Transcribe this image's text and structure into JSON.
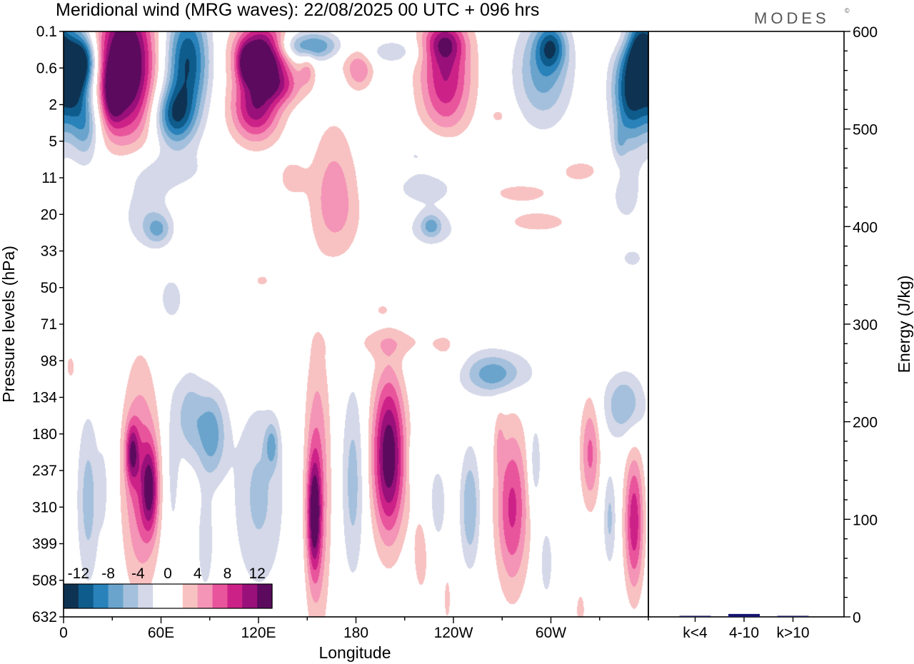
{
  "chart_data": {
    "type": "heatmap",
    "title": "Meridional wind (MRG waves):  22/08/2025  00 UTC  + 096 hrs",
    "logo": "MODES",
    "logo_mark": "©",
    "xlabel": "Longitude",
    "ylabel": "Pressure levels (hPa)",
    "x_ticks": [
      "0",
      "60E",
      "120E",
      "180",
      "120W",
      "60W"
    ],
    "x_tick_degrees": [
      0,
      60,
      120,
      180,
      240,
      300
    ],
    "x_range_degrees": [
      0,
      360
    ],
    "y_levels": [
      "0.1",
      "0.6",
      "2",
      "5",
      "11",
      "20",
      "33",
      "50",
      "71",
      "98",
      "134",
      "180",
      "237",
      "310",
      "399",
      "508",
      "632"
    ],
    "colorbar": {
      "labels": [
        "-12",
        "-8",
        "-4",
        "0",
        "4",
        "8",
        "12"
      ],
      "label_values": [
        -12,
        -8,
        -4,
        0,
        4,
        8,
        12
      ],
      "bounds": [
        -14,
        14
      ],
      "step": 2,
      "colors": [
        "#0e3252",
        "#0e5c8c",
        "#2a82ba",
        "#6aa4cc",
        "#a4c0dc",
        "#d4d8e8",
        "#ffffff",
        "#ffffff",
        "#f8c2c2",
        "#f494b6",
        "#e9559c",
        "#cc2288",
        "#99107a",
        "#5c0a5e"
      ]
    },
    "field_blobs": [
      {
        "lon": 5,
        "lev": 1.2,
        "rx": 10,
        "ry": 1.4,
        "v": -14
      },
      {
        "lon": 13,
        "lev": 0.8,
        "rx": 8,
        "ry": 0.7,
        "v": -9
      },
      {
        "lon": 14,
        "lev": 2.6,
        "rx": 8,
        "ry": 0.9,
        "v": -6
      },
      {
        "lon": 38,
        "lev": 0.9,
        "rx": 17,
        "ry": 1.9,
        "v": 17
      },
      {
        "lon": 30,
        "lev": 1.7,
        "rx": 6,
        "ry": 0.8,
        "v": 7
      },
      {
        "lon": 76,
        "lev": 0.8,
        "rx": 13,
        "ry": 1.5,
        "v": -12
      },
      {
        "lon": 68,
        "lev": 2.3,
        "rx": 12,
        "ry": 0.8,
        "v": -10
      },
      {
        "lon": 122,
        "lev": 0.6,
        "rx": 16,
        "ry": 0.8,
        "v": 17
      },
      {
        "lon": 112,
        "lev": 0.9,
        "rx": 5,
        "ry": 0.5,
        "v": 6
      },
      {
        "lon": 152,
        "lev": 0.4,
        "rx": 25,
        "ry": 0.4,
        "v": -9
      },
      {
        "lon": 150,
        "lev": 1.0,
        "rx": 5,
        "ry": 0.5,
        "v": 4
      },
      {
        "lon": 133,
        "lev": 1.5,
        "rx": 14,
        "ry": 0.5,
        "v": 6
      },
      {
        "lon": 118,
        "lev": 2.1,
        "rx": 15,
        "ry": 0.9,
        "v": 11
      },
      {
        "lon": 178,
        "lev": 0.5,
        "rx": 16,
        "ry": 0.5,
        "v": 5
      },
      {
        "lon": 182,
        "lev": 1.1,
        "rx": 8,
        "ry": 0.5,
        "v": 5
      },
      {
        "lon": 198,
        "lev": 0.55,
        "rx": 22,
        "ry": 0.35,
        "v": -4
      },
      {
        "lon": 235,
        "lev": 1.2,
        "rx": 16,
        "ry": 1.6,
        "v": 10
      },
      {
        "lon": 234,
        "lev": 0.3,
        "rx": 12,
        "ry": 0.5,
        "v": 6
      },
      {
        "lon": 295,
        "lev": 1.1,
        "rx": 17,
        "ry": 1.4,
        "v": -7
      },
      {
        "lon": 300,
        "lev": 0.4,
        "rx": 9,
        "ry": 0.6,
        "v": -8
      },
      {
        "lon": 349,
        "lev": 1.6,
        "rx": 11,
        "ry": 1.4,
        "v": -13
      },
      {
        "lon": 355,
        "lev": 0.4,
        "rx": 8,
        "ry": 0.8,
        "v": -10
      },
      {
        "lon": 350,
        "lev": 0.2,
        "rx": 20,
        "ry": 0.5,
        "v": 2
      },
      {
        "lon": 268,
        "lev": 2.3,
        "rx": 7,
        "ry": 0.3,
        "v": 2.5
      },
      {
        "lon": 166,
        "lev": 3.8,
        "rx": 14,
        "ry": 1.7,
        "v": 3.2
      },
      {
        "lon": 168,
        "lev": 5.0,
        "rx": 16,
        "ry": 1.3,
        "v": 3.2
      },
      {
        "lon": 140,
        "lev": 4.0,
        "rx": 10,
        "ry": 0.6,
        "v": 2.6
      },
      {
        "lon": 60,
        "lev": 3.8,
        "rx": 34,
        "ry": 0.6,
        "v": -2.6
      },
      {
        "lon": 50,
        "lev": 5.0,
        "rx": 16,
        "ry": 1.0,
        "v": -3.2
      },
      {
        "lon": 58,
        "lev": 5.4,
        "rx": 8,
        "ry": 0.4,
        "v": -5
      },
      {
        "lon": 224,
        "lev": 3.3,
        "rx": 25,
        "ry": 0.6,
        "v": -2.6
      },
      {
        "lon": 225,
        "lev": 4.3,
        "rx": 28,
        "ry": 0.5,
        "v": -2.6
      },
      {
        "lon": 227,
        "lev": 5.4,
        "rx": 22,
        "ry": 0.6,
        "v": -2.6
      },
      {
        "lon": 226,
        "lev": 5.3,
        "rx": 6,
        "ry": 0.3,
        "v": -5
      },
      {
        "lon": 280,
        "lev": 4.4,
        "rx": 28,
        "ry": 0.35,
        "v": 2.6
      },
      {
        "lon": 292,
        "lev": 5.2,
        "rx": 28,
        "ry": 0.4,
        "v": 2.6
      },
      {
        "lon": 318,
        "lev": 3.8,
        "rx": 18,
        "ry": 0.4,
        "v": 2.6
      },
      {
        "lon": 346,
        "lev": 4.5,
        "rx": 12,
        "ry": 1.0,
        "v": -2.6
      },
      {
        "lon": 342,
        "lev": 3.0,
        "rx": 4,
        "ry": 0.5,
        "v": -3
      },
      {
        "lon": 350,
        "lev": 6.2,
        "rx": 8,
        "ry": 0.3,
        "v": -2.6
      },
      {
        "lon": 66,
        "lev": 7.3,
        "rx": 10,
        "ry": 0.8,
        "v": -2.7
      },
      {
        "lon": 122,
        "lev": 6.8,
        "rx": 7,
        "ry": 0.25,
        "v": 2.4
      },
      {
        "lon": 200,
        "lev": 8.5,
        "rx": 30,
        "ry": 0.4,
        "v": 2.6
      },
      {
        "lon": 236,
        "lev": 8.8,
        "rx": 12,
        "ry": 0.7,
        "v": 2.6
      },
      {
        "lon": 262,
        "lev": 9.2,
        "rx": 36,
        "ry": 0.7,
        "v": -2.8
      },
      {
        "lon": 265,
        "lev": 9.4,
        "rx": 16,
        "ry": 0.5,
        "v": -5
      },
      {
        "lon": 316,
        "lev": 8.9,
        "rx": 18,
        "ry": 0.55,
        "v": 2.6
      },
      {
        "lon": 322,
        "lev": 8.7,
        "rx": 12,
        "ry": 0.5,
        "v": -2.4
      },
      {
        "lon": 345,
        "lev": 10.2,
        "rx": 13,
        "ry": 0.9,
        "v": -6
      },
      {
        "lon": 4,
        "lev": 9.2,
        "rx": 5,
        "ry": 0.6,
        "v": 2.6
      },
      {
        "lon": 97,
        "lev": 9.3,
        "rx": 5,
        "ry": 0.3,
        "v": 2.4
      },
      {
        "lon": 196,
        "lev": 7.6,
        "rx": 4,
        "ry": 0.15,
        "v": 2.4
      },
      {
        "lon": 15,
        "lev": 12.8,
        "rx": 7,
        "ry": 2.3,
        "v": -5
      },
      {
        "lon": 24,
        "lev": 12.5,
        "rx": 3,
        "ry": 1.0,
        "v": -3
      },
      {
        "lon": 47,
        "lev": 12.2,
        "rx": 11,
        "ry": 3.0,
        "v": 7
      },
      {
        "lon": 53,
        "lev": 12.5,
        "rx": 5,
        "ry": 1.2,
        "v": 9
      },
      {
        "lon": 42,
        "lev": 11.5,
        "rx": 4,
        "ry": 0.8,
        "v": 8
      },
      {
        "lon": 67,
        "lev": 12.0,
        "rx": 4,
        "ry": 2.0,
        "v": -3
      },
      {
        "lon": 77,
        "lev": 10.5,
        "rx": 9,
        "ry": 1.2,
        "v": -5
      },
      {
        "lon": 91,
        "lev": 11.0,
        "rx": 9,
        "ry": 1.2,
        "v": -7
      },
      {
        "lon": 87,
        "lev": 14.0,
        "rx": 6,
        "ry": 1.6,
        "v": -3
      },
      {
        "lon": 120,
        "lev": 12.7,
        "rx": 16,
        "ry": 2.6,
        "v": -4.5
      },
      {
        "lon": 128,
        "lev": 11.3,
        "rx": 4,
        "ry": 0.6,
        "v": -5
      },
      {
        "lon": 156,
        "lev": 12.5,
        "rx": 8,
        "ry": 3.8,
        "v": 6.5
      },
      {
        "lon": 154,
        "lev": 13.2,
        "rx": 4,
        "ry": 1.5,
        "v": 10
      },
      {
        "lon": 178,
        "lev": 12.3,
        "rx": 7,
        "ry": 2.6,
        "v": -5
      },
      {
        "lon": 200,
        "lev": 11.6,
        "rx": 10,
        "ry": 2.2,
        "v": 14
      },
      {
        "lon": 220,
        "lev": 14.3,
        "rx": 6,
        "ry": 1.4,
        "v": 2.8
      },
      {
        "lon": 216,
        "lev": 11.8,
        "rx": 4,
        "ry": 0.6,
        "v": -2.5
      },
      {
        "lon": 230,
        "lev": 12.9,
        "rx": 6,
        "ry": 1.2,
        "v": -3.2
      },
      {
        "lon": 250,
        "lev": 13.0,
        "rx": 6,
        "ry": 1.6,
        "v": -6
      },
      {
        "lon": 276,
        "lev": 13.0,
        "rx": 10,
        "ry": 2.2,
        "v": 8.5
      },
      {
        "lon": 268,
        "lev": 11.2,
        "rx": 3,
        "ry": 0.8,
        "v": 2.6
      },
      {
        "lon": 290,
        "lev": 11.8,
        "rx": 4,
        "ry": 1.2,
        "v": -4
      },
      {
        "lon": 297,
        "lev": 14.5,
        "rx": 4,
        "ry": 1.0,
        "v": -3.5
      },
      {
        "lon": 324,
        "lev": 11.5,
        "rx": 6,
        "ry": 1.5,
        "v": 6.5
      },
      {
        "lon": 336,
        "lev": 13.3,
        "rx": 4,
        "ry": 1.3,
        "v": -4.5
      },
      {
        "lon": 351,
        "lev": 13.4,
        "rx": 6,
        "ry": 1.9,
        "v": 9.5
      },
      {
        "lon": 236,
        "lev": 15.5,
        "rx": 3,
        "ry": 0.9,
        "v": 2.6
      },
      {
        "lon": 318,
        "lev": 15.8,
        "rx": 4,
        "ry": 0.7,
        "v": 2.6
      }
    ],
    "energy_axis": {
      "label": "Energy (J/kg)",
      "ticks": [
        "0",
        "100",
        "200",
        "300",
        "400",
        "500",
        "600"
      ],
      "tick_values": [
        0,
        100,
        200,
        300,
        400,
        500,
        600
      ],
      "ylim": [
        0,
        600
      ]
    },
    "energy_bars": {
      "categories": [
        "k<4",
        "4-10",
        "k>10"
      ],
      "values": [
        1,
        3,
        0.5
      ],
      "colors": [
        "#1a1a5e",
        "#161670",
        "#1a1a5e"
      ]
    }
  }
}
